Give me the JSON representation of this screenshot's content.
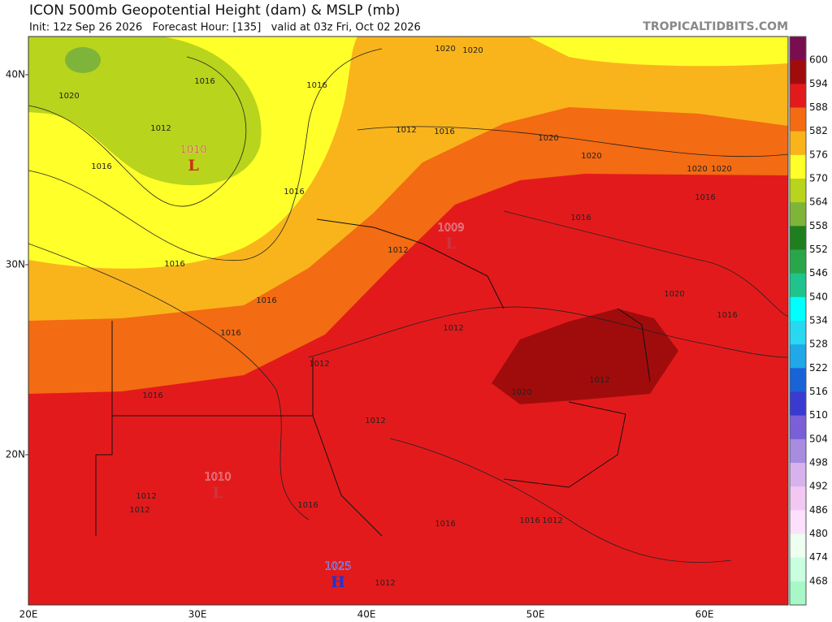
{
  "header": {
    "title": "ICON 500mb Geopotential Height (dam) & MSLP (mb)",
    "subtitle": "Init: 12z Sep 26 2026   Forecast Hour: [135]   valid at 03z Fri, Oct 02 2026",
    "site": "TROPICALTIDBITS.COM"
  },
  "colorbar": {
    "levels": [
      600,
      594,
      588,
      582,
      576,
      570,
      564,
      558,
      552,
      546,
      540,
      534,
      528,
      522,
      516,
      510,
      504,
      498,
      492,
      486,
      480,
      474,
      468
    ],
    "colors": [
      "#7a0d4f",
      "#a00c0c",
      "#e31a1c",
      "#f36b12",
      "#f9b41c",
      "#ffff2a",
      "#b8d41c",
      "#7fb43a",
      "#1f7f1f",
      "#2aa64a",
      "#1fc48c",
      "#00ffff",
      "#28d8f0",
      "#20a8e8",
      "#1a62d8",
      "#3a3ad0",
      "#7b5fd8",
      "#a88ce0",
      "#d8b2ec",
      "#f2c8f2",
      "#fde0fd",
      "#ecfff0",
      "#c8ffe0",
      "#a8f7c8"
    ]
  },
  "axes": {
    "lat_labels": [
      "40N",
      "30N",
      "20N"
    ],
    "lon_labels": [
      "20E",
      "30E",
      "40E",
      "50E",
      "60E"
    ]
  },
  "pressure_centers": [
    {
      "value": "1010",
      "type": "L"
    },
    {
      "value": "1009",
      "type": "L"
    },
    {
      "value": "1010",
      "type": "L"
    },
    {
      "value": "1025",
      "type": "H"
    }
  ],
  "isobar_labels": [
    "1020",
    "1016",
    "1012",
    "1016",
    "1016",
    "1016",
    "1012",
    "1016",
    "1020",
    "1020",
    "1020",
    "1020",
    "1020",
    "1020",
    "1016",
    "1016",
    "1012",
    "1016",
    "1016",
    "1012",
    "1012",
    "1016",
    "1016",
    "1012",
    "1012",
    "1012",
    "1016",
    "1016",
    "1016",
    "1012",
    "1020",
    "1020",
    "1016",
    "1012",
    "1012"
  ]
}
